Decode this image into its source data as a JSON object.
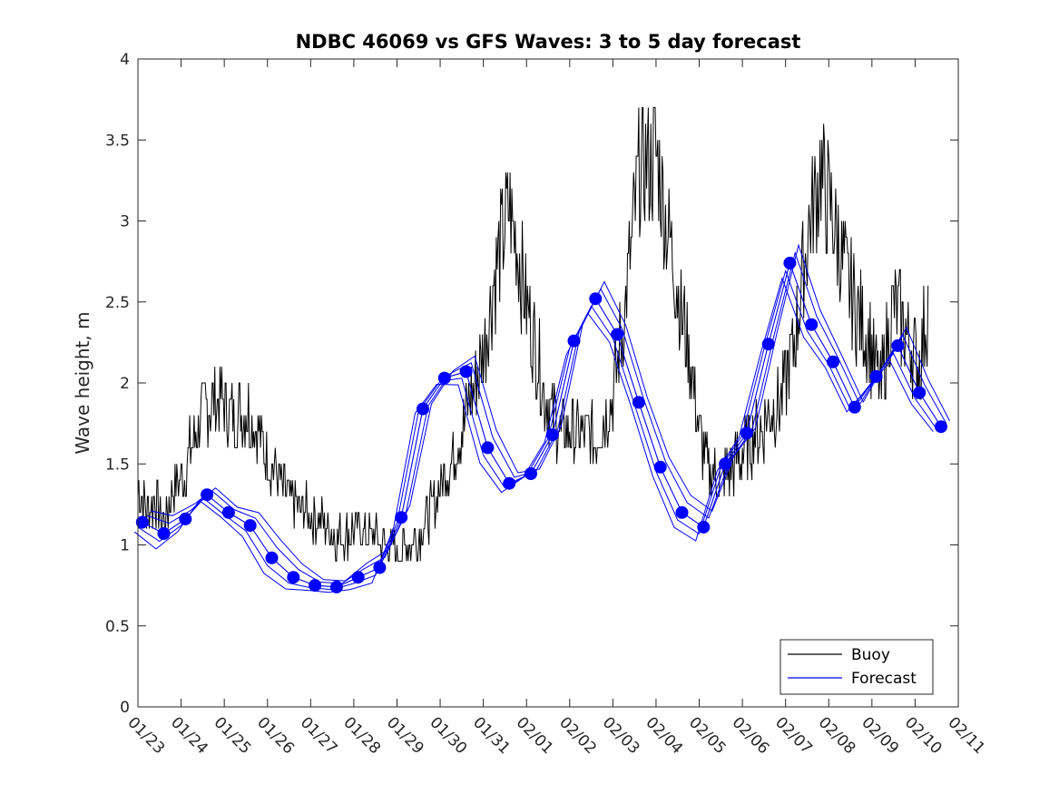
{
  "chart_data": {
    "type": "line",
    "title": "NDBC 46069 vs GFS Waves: 3 to 5 day forecast",
    "xlabel": "",
    "ylabel": "Wave height, m",
    "xlim": [
      0,
      19
    ],
    "ylim": [
      0,
      4
    ],
    "x_tick_labels": [
      "01/23",
      "01/24",
      "01/25",
      "01/26",
      "01/27",
      "01/28",
      "01/29",
      "01/30",
      "01/31",
      "02/01",
      "02/02",
      "02/03",
      "02/04",
      "02/05",
      "02/06",
      "02/07",
      "02/08",
      "02/09",
      "02/10",
      "02/11"
    ],
    "y_ticks": [
      0,
      0.5,
      1,
      1.5,
      2,
      2.5,
      3,
      3.5,
      4
    ],
    "y_tick_labels": [
      "0",
      "0.5",
      "1",
      "1.5",
      "2",
      "2.5",
      "3",
      "3.5",
      "4"
    ],
    "grid": false,
    "legend": {
      "position": "bottom-right",
      "entries": [
        "Buoy",
        "Forecast"
      ]
    },
    "colors": {
      "buoy": "#000000",
      "forecast": "#0000ff",
      "axes": "#262626"
    },
    "series": [
      {
        "name": "Buoy",
        "x": [
          0,
          0.2,
          0.4,
          0.6,
          0.8,
          1.0,
          1.3,
          1.6,
          1.9,
          2.2,
          2.5,
          2.8,
          3.1,
          3.4,
          3.8,
          4.2,
          4.6,
          5.0,
          5.5,
          6.0,
          6.5,
          7.0,
          7.5,
          8.0,
          8.3,
          8.6,
          9.0,
          9.4,
          9.8,
          10.2,
          10.6,
          11.0,
          11.3,
          11.6,
          12.0,
          12.4,
          12.8,
          13.0,
          13.2,
          13.5,
          13.8,
          14.1,
          14.5,
          14.9,
          15.2,
          15.5,
          15.8,
          16.1,
          16.5,
          16.9,
          17.2,
          17.5,
          17.8,
          18.1,
          18.3
        ],
        "values": [
          1.35,
          1.2,
          1.28,
          1.12,
          1.32,
          1.4,
          1.65,
          1.88,
          1.9,
          1.78,
          1.85,
          1.7,
          1.5,
          1.32,
          1.22,
          1.15,
          1.05,
          1.1,
          1.05,
          0.95,
          1.05,
          1.35,
          1.7,
          2.2,
          2.7,
          3.1,
          2.5,
          1.95,
          1.7,
          1.7,
          1.65,
          1.9,
          2.5,
          3.3,
          3.4,
          2.75,
          2.1,
          1.7,
          1.45,
          1.4,
          1.5,
          1.6,
          1.75,
          1.9,
          2.25,
          2.9,
          3.3,
          3.0,
          2.55,
          2.3,
          1.95,
          2.5,
          2.3,
          2.1,
          2.5
        ]
      },
      {
        "name": "Forecast",
        "x": [
          0.1,
          0.6,
          1.1,
          1.6,
          2.1,
          2.6,
          3.1,
          3.6,
          4.1,
          4.6,
          5.1,
          5.6,
          6.1,
          6.6,
          7.1,
          7.6,
          8.1,
          8.6,
          9.1,
          9.6,
          10.1,
          10.6,
          11.1,
          11.6,
          12.1,
          12.6,
          13.1,
          13.6,
          14.1,
          14.6,
          15.1,
          15.6,
          16.1,
          16.6,
          17.1,
          17.6,
          18.1,
          18.6
        ],
        "values": [
          1.14,
          1.07,
          1.16,
          1.31,
          1.2,
          1.12,
          0.92,
          0.8,
          0.75,
          0.74,
          0.8,
          0.86,
          1.17,
          1.84,
          2.03,
          2.07,
          1.6,
          1.38,
          1.44,
          1.68,
          2.26,
          2.52,
          2.3,
          1.88,
          1.48,
          1.2,
          1.11,
          1.5,
          1.69,
          2.24,
          2.74,
          2.36,
          2.13,
          1.85,
          2.04,
          2.23,
          1.94,
          1.73
        ]
      }
    ]
  }
}
